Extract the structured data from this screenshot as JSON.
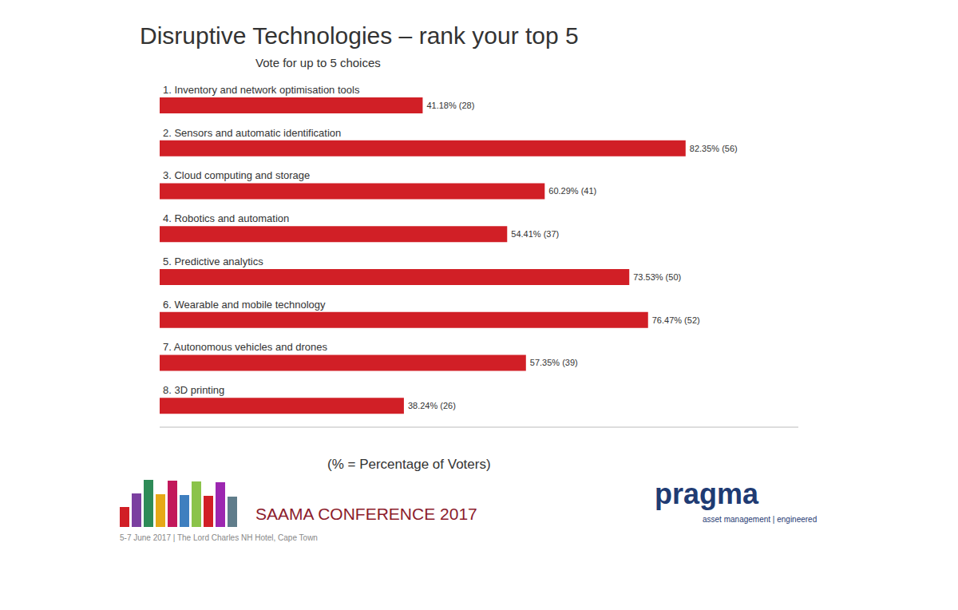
{
  "chart_data": {
    "type": "bar",
    "title": "Disruptive Technologies – rank your top 5",
    "subtitle": "Vote for up to 5 choices",
    "categories": [
      "1. Inventory and network optimisation tools",
      "2. Sensors and automatic identification",
      "3. Cloud computing and storage",
      "4. Robotics and automation",
      "5. Predictive analytics",
      "6. Wearable and mobile technology",
      "7. Autonomous vehicles and drones",
      "8. 3D printing"
    ],
    "values": [
      41.18,
      82.35,
      60.29,
      54.41,
      73.53,
      76.47,
      57.35,
      38.24
    ],
    "value_labels": [
      "41.18% (28)",
      "82.35% (56)",
      "60.29% (41)",
      "54.41% (37)",
      "73.53% (50)",
      "76.47% (52)",
      "57.35% (39)",
      "38.24% (26)"
    ],
    "color": "#d11f26",
    "orientation": "horizontal",
    "data_labels": true,
    "tick_labels": "y",
    "grid": false,
    "xlim": [
      0,
      100
    ],
    "annotations": [
      "(% = Percentage of Voters)"
    ]
  },
  "footer": {
    "event": "SAAMA CONFERENCE 2017",
    "date_venue": "5-7 June 2017 | The Lord Charles NH Hotel, Cape Town",
    "brand": "pragma",
    "tagline": "asset management | engineered"
  }
}
